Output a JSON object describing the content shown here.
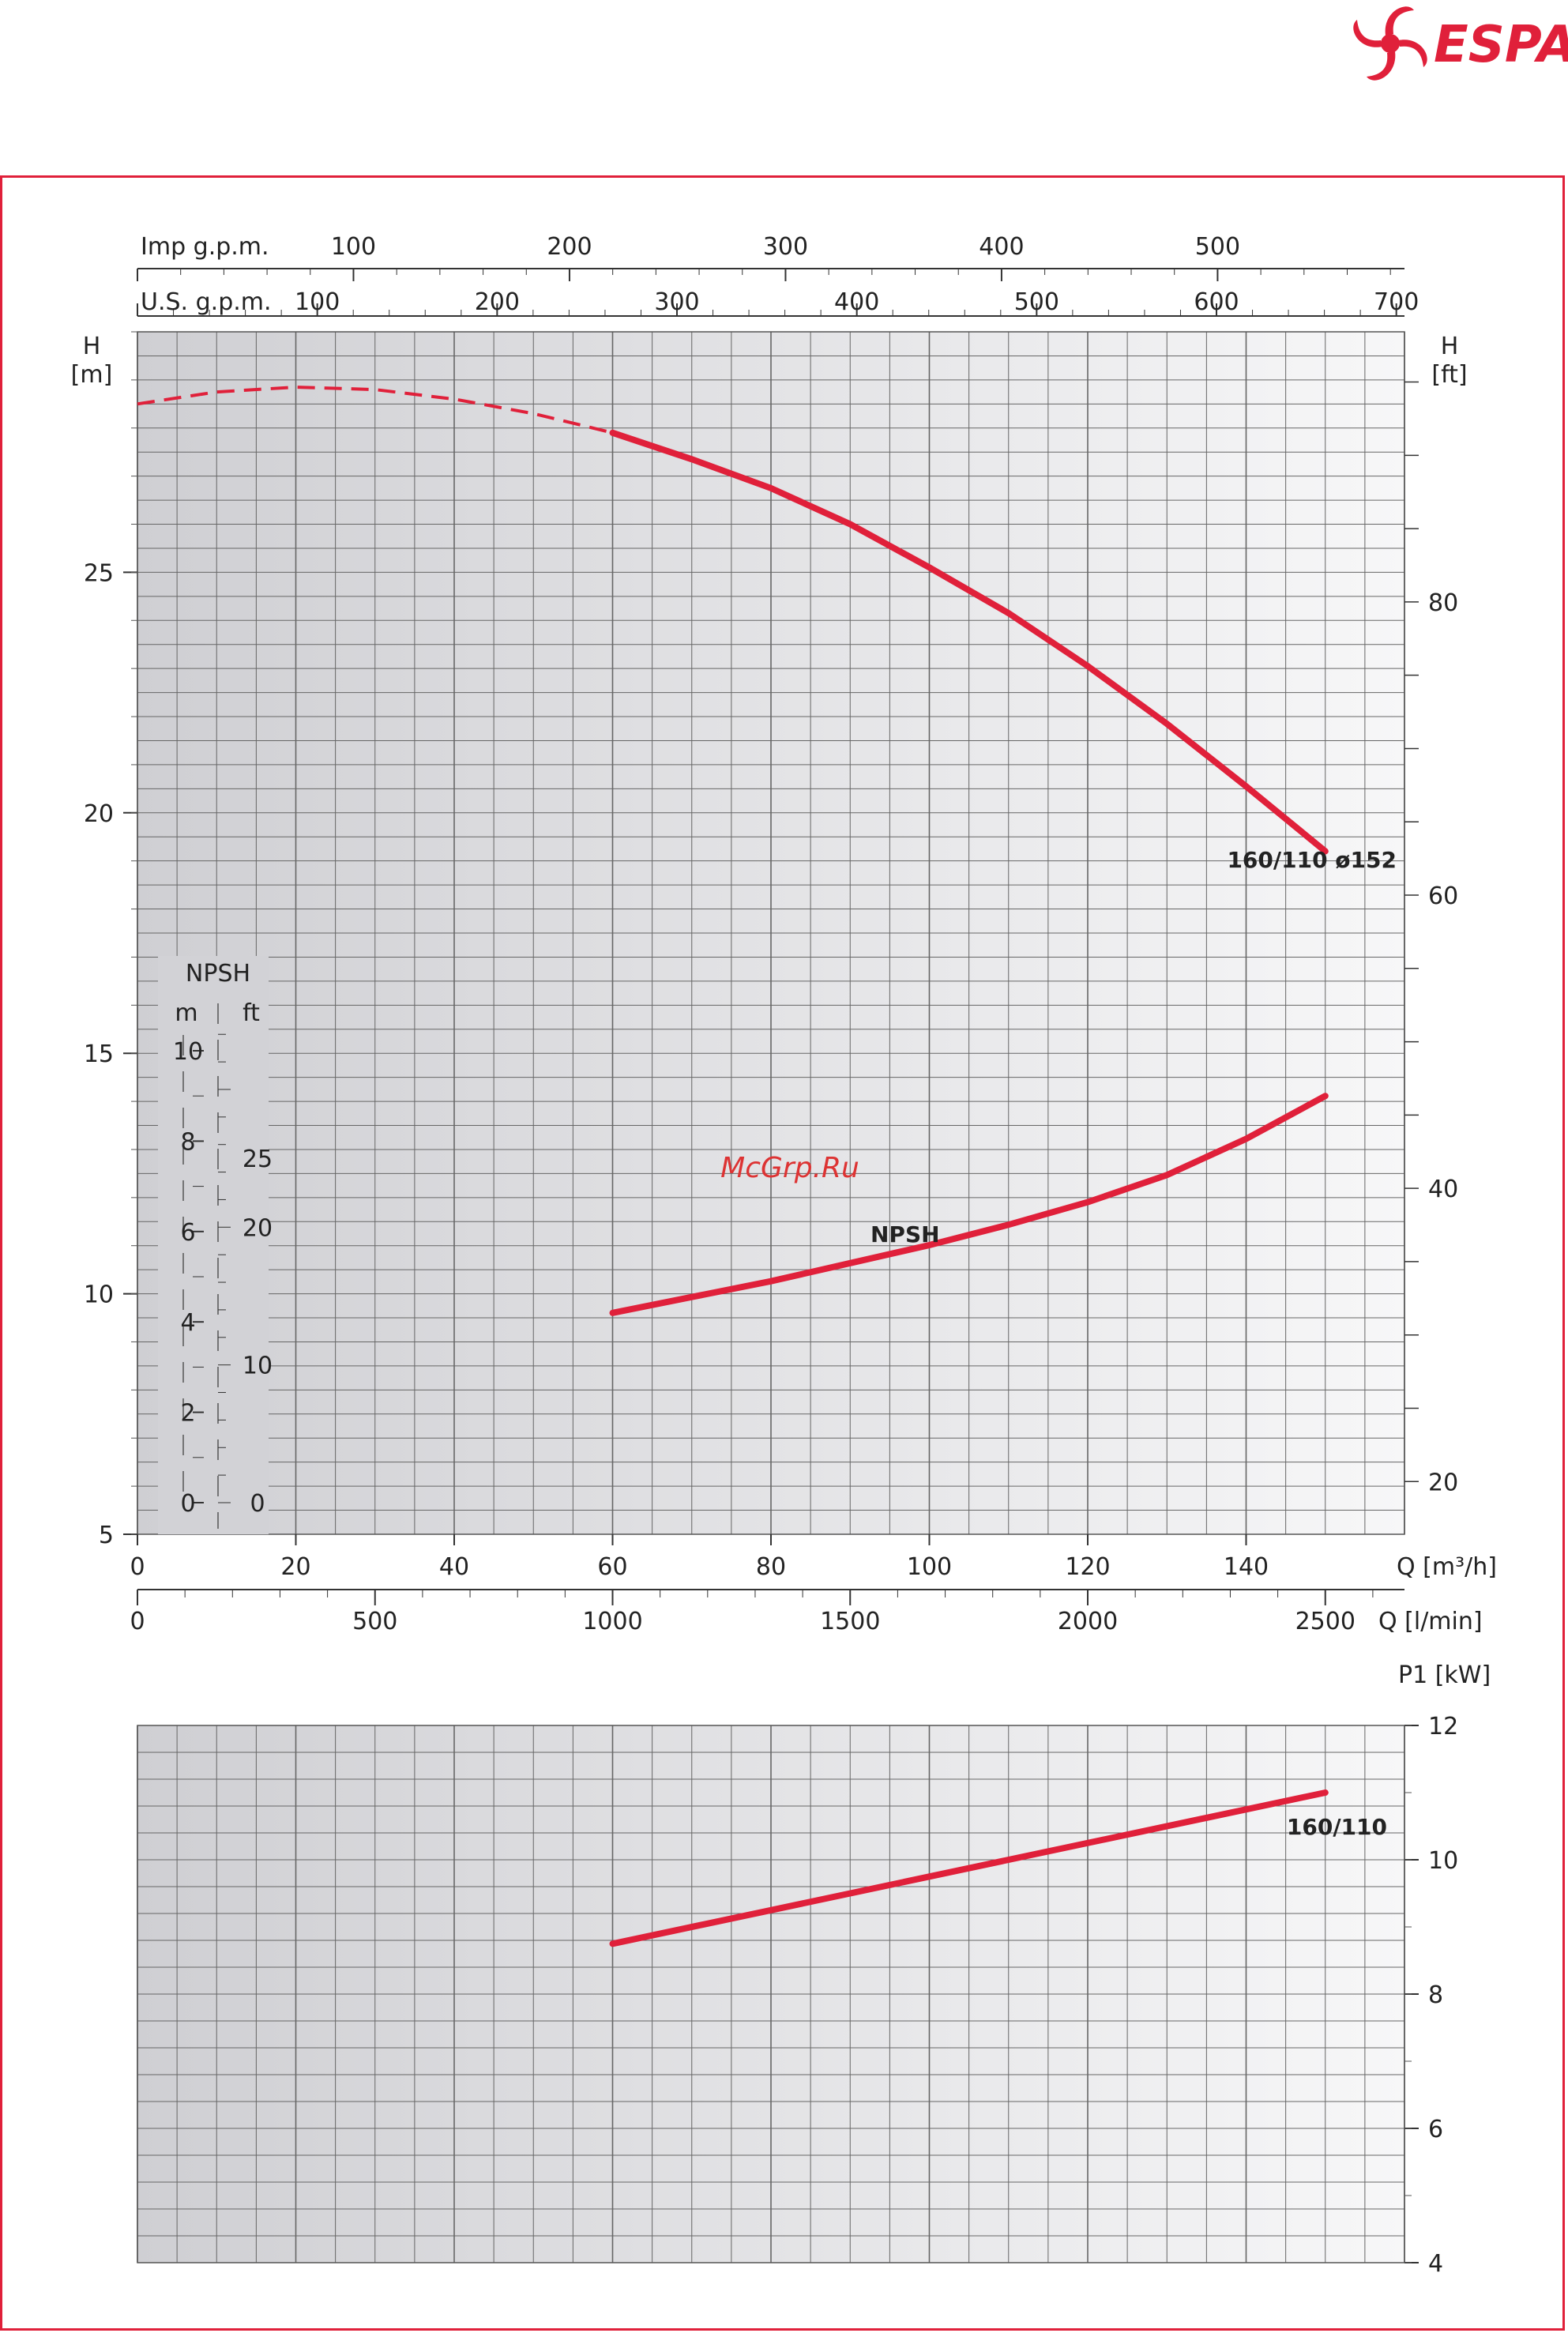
{
  "brand": {
    "name": "ESPA",
    "color": "#e0203a"
  },
  "watermark": "McGrp.Ru",
  "colors": {
    "curve": "#e0203a",
    "grid": "#666666",
    "panel_dark": "#cfcfd3",
    "panel_light": "#f7f7f8"
  },
  "chart_data": [
    {
      "type": "line",
      "panel": "head",
      "x_unit_label": "Q [m³/h]",
      "x_ticks": [
        0,
        20,
        40,
        60,
        80,
        100,
        120,
        140
      ],
      "xlim": [
        0,
        160
      ],
      "ylabel_left": {
        "line1": "H",
        "line2": "[m]"
      },
      "ylabel_right": {
        "line1": "H",
        "line2": "[ft]"
      },
      "ylim": [
        5,
        30
      ],
      "y_ticks_left": [
        5,
        10,
        15,
        20,
        25
      ],
      "y_ticks_right": [
        20,
        40,
        60,
        80
      ],
      "secondary_x_axes": [
        {
          "label": "Q [l/min]",
          "ticks": [
            "0",
            "500",
            "1000",
            "1500",
            "2000",
            "2500"
          ],
          "values": [
            0,
            500,
            1000,
            1500,
            2000,
            2500
          ]
        },
        {
          "label": "U.S. g.p.m.",
          "ticks": [
            "100",
            "200",
            "300",
            "400",
            "500",
            "600",
            "700"
          ],
          "values": [
            100,
            200,
            300,
            400,
            500,
            600,
            700
          ]
        },
        {
          "label": "Imp g.p.m.",
          "ticks": [
            "100",
            "200",
            "300",
            "400",
            "500"
          ],
          "values": [
            100,
            200,
            300,
            400,
            500
          ]
        }
      ],
      "npsh_scale": {
        "title": "NPSH",
        "m_label": "m",
        "ft_label": "ft",
        "m_ticks": [
          "0",
          "2",
          "4",
          "6",
          "8",
          "10"
        ],
        "ft_ticks": [
          "0",
          "10",
          "20",
          "25"
        ]
      },
      "series": [
        {
          "name": "160/110 ø152",
          "x": [
            0,
            10,
            20,
            30,
            40,
            50,
            60,
            70,
            80,
            90,
            100,
            110,
            120,
            130,
            140,
            150
          ],
          "y": [
            28.5,
            28.75,
            28.85,
            28.8,
            28.6,
            28.3,
            27.9,
            27.35,
            26.75,
            26.0,
            25.1,
            24.15,
            23.05,
            21.85,
            20.55,
            19.2
          ],
          "dashed_until_x": 60
        },
        {
          "name": "NPSH",
          "unit": "m",
          "x": [
            60,
            70,
            80,
            90,
            100,
            110,
            120,
            130,
            140,
            150
          ],
          "y": [
            4.2,
            4.55,
            4.9,
            5.3,
            5.7,
            6.15,
            6.65,
            7.25,
            8.05,
            9.0
          ]
        }
      ]
    },
    {
      "type": "line",
      "panel": "power",
      "ylabel": "P1 [kW]",
      "ylim": [
        4,
        12
      ],
      "y_ticks": [
        4,
        6,
        8,
        10,
        12
      ],
      "xlim": [
        0,
        160
      ],
      "series": [
        {
          "name": "160/110",
          "x": [
            60,
            150
          ],
          "y": [
            8.75,
            11.0
          ]
        }
      ]
    }
  ]
}
